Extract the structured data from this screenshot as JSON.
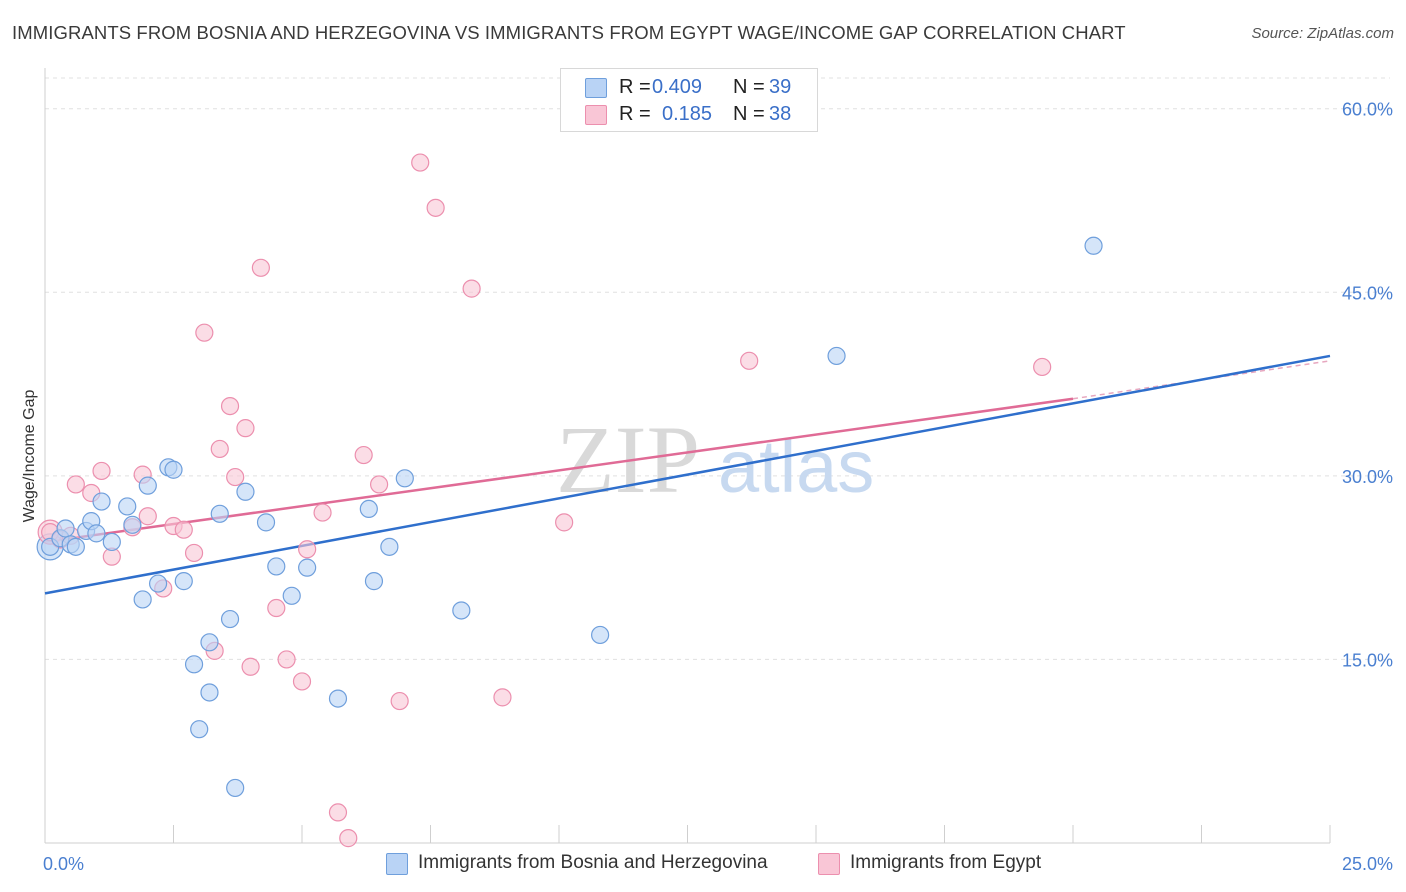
{
  "header": {
    "title": "IMMIGRANTS FROM BOSNIA AND HERZEGOVINA VS IMMIGRANTS FROM EGYPT WAGE/INCOME GAP CORRELATION CHART",
    "source": "Source: ZipAtlas.com"
  },
  "watermark": {
    "zip": "ZIP",
    "atlas": "atlas"
  },
  "legend": {
    "rows": [
      {
        "r_label": "R =",
        "r_value": "0.409",
        "n_label": "N =",
        "n_value": "39"
      },
      {
        "r_label": "R =",
        "r_value": "0.185",
        "n_label": "N =",
        "n_value": "38"
      }
    ]
  },
  "colors": {
    "blue_fill": "#b9d3f5",
    "blue_stroke": "#6f9fdc",
    "blue_line": "#2f6fcc",
    "pink_fill": "#f9c6d6",
    "pink_stroke": "#ec8fae",
    "pink_line": "#e06b96",
    "grid": "#e0e0e0",
    "tick_label": "#4a7fd0"
  },
  "chart_data": {
    "type": "scatter",
    "title": "IMMIGRANTS FROM BOSNIA AND HERZEGOVINA VS IMMIGRANTS FROM EGYPT WAGE/INCOME GAP CORRELATION CHART",
    "xlabel": "",
    "ylabel": "Wage/Income Gap",
    "xlim": [
      0,
      25
    ],
    "ylim": [
      0,
      63
    ],
    "x_tick_labels": [
      "0.0%",
      "25.0%"
    ],
    "y_ticks": [
      15,
      30,
      45,
      60
    ],
    "y_tick_labels": [
      "15.0%",
      "30.0%",
      "45.0%",
      "60.0%"
    ],
    "grid": true,
    "legend_position": "bottom",
    "series": [
      {
        "name": "Immigrants from Bosnia and Herzegovina",
        "color": "#6f9fdc",
        "points": [
          [
            0.1,
            24.2
          ],
          [
            0.3,
            24.9
          ],
          [
            0.4,
            25.7
          ],
          [
            0.5,
            24.4
          ],
          [
            0.6,
            24.2
          ],
          [
            0.8,
            25.5
          ],
          [
            0.9,
            26.3
          ],
          [
            1.1,
            27.9
          ],
          [
            1.3,
            24.6
          ],
          [
            1.6,
            27.5
          ],
          [
            1.7,
            26.0
          ],
          [
            2.0,
            29.2
          ],
          [
            1.9,
            19.9
          ],
          [
            2.2,
            21.2
          ],
          [
            2.4,
            30.7
          ],
          [
            2.5,
            30.5
          ],
          [
            2.7,
            21.4
          ],
          [
            2.9,
            14.6
          ],
          [
            3.0,
            9.3
          ],
          [
            3.2,
            12.3
          ],
          [
            3.2,
            16.4
          ],
          [
            3.4,
            26.9
          ],
          [
            3.6,
            18.3
          ],
          [
            3.7,
            4.5
          ],
          [
            3.9,
            28.7
          ],
          [
            4.3,
            26.2
          ],
          [
            4.5,
            22.6
          ],
          [
            4.8,
            20.2
          ],
          [
            5.1,
            22.5
          ],
          [
            5.7,
            11.8
          ],
          [
            6.3,
            27.3
          ],
          [
            6.4,
            21.4
          ],
          [
            6.7,
            24.2
          ],
          [
            7.0,
            29.8
          ],
          [
            8.1,
            19.0
          ],
          [
            10.8,
            17.0
          ],
          [
            15.4,
            39.8
          ],
          [
            20.4,
            48.8
          ],
          [
            1.0,
            25.3
          ]
        ],
        "trend": {
          "x": [
            0,
            25
          ],
          "y": [
            20.4,
            39.8
          ]
        }
      },
      {
        "name": "Immigrants from Egypt",
        "color": "#ec8fae",
        "points": [
          [
            0.1,
            25.4
          ],
          [
            0.3,
            24.8
          ],
          [
            0.5,
            25.1
          ],
          [
            0.6,
            29.3
          ],
          [
            0.9,
            28.6
          ],
          [
            1.1,
            30.4
          ],
          [
            1.3,
            23.4
          ],
          [
            1.7,
            25.8
          ],
          [
            1.9,
            30.1
          ],
          [
            2.0,
            26.7
          ],
          [
            2.3,
            20.8
          ],
          [
            2.5,
            25.9
          ],
          [
            2.7,
            25.6
          ],
          [
            2.9,
            23.7
          ],
          [
            3.1,
            41.7
          ],
          [
            3.3,
            15.7
          ],
          [
            3.4,
            32.2
          ],
          [
            3.6,
            35.7
          ],
          [
            3.7,
            29.9
          ],
          [
            3.9,
            33.9
          ],
          [
            4.0,
            14.4
          ],
          [
            4.2,
            47.0
          ],
          [
            4.5,
            19.2
          ],
          [
            4.7,
            15.0
          ],
          [
            5.0,
            13.2
          ],
          [
            5.1,
            24.0
          ],
          [
            5.4,
            27.0
          ],
          [
            5.7,
            2.5
          ],
          [
            5.9,
            0.4
          ],
          [
            6.2,
            31.7
          ],
          [
            6.5,
            29.3
          ],
          [
            6.9,
            11.6
          ],
          [
            7.3,
            55.6
          ],
          [
            7.6,
            51.9
          ],
          [
            8.3,
            45.3
          ],
          [
            8.9,
            11.9
          ],
          [
            10.1,
            26.2
          ],
          [
            13.7,
            39.4
          ]
        ],
        "extra_points": [
          [
            19.4,
            38.9
          ]
        ],
        "trend": {
          "x": [
            0,
            20
          ],
          "y": [
            24.6,
            36.3
          ]
        },
        "trend_extension": {
          "x": [
            20,
            25
          ],
          "y": [
            36.3,
            39.4
          ]
        }
      }
    ]
  },
  "bottom_legend": [
    {
      "label": "Immigrants from Bosnia and Herzegovina"
    },
    {
      "label": "Immigrants from Egypt"
    }
  ]
}
